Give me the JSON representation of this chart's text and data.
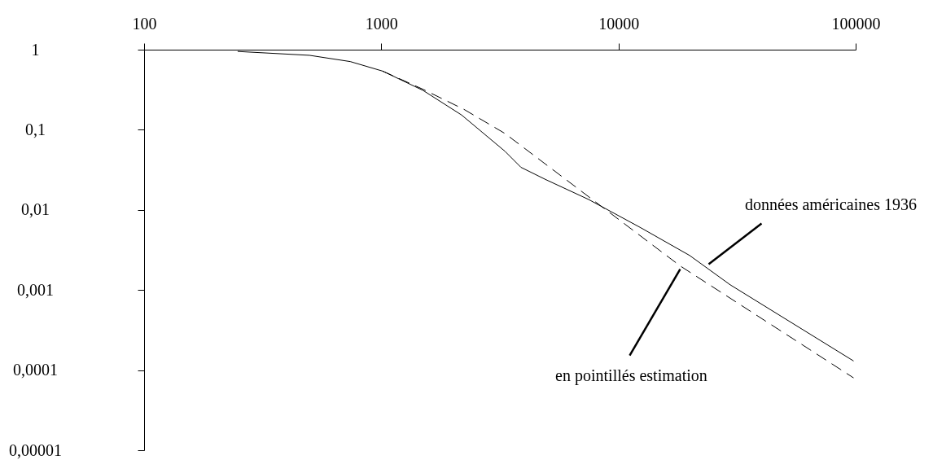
{
  "chart_data": {
    "type": "line",
    "xlim": [
      100,
      100000
    ],
    "xticks": [
      100,
      1000,
      10000,
      100000
    ],
    "ylim": [
      1e-05,
      1
    ],
    "yticks": [
      1,
      {
        "value": 0.1,
        "label": "0,1"
      },
      {
        "value": 0.01,
        "label": "0,01"
      },
      {
        "value": 0.001,
        "label": "0,001"
      },
      {
        "value": 0.0001,
        "label": "0,0001"
      },
      {
        "value": 1e-05,
        "label": "0,00001"
      }
    ],
    "log": "xy",
    "grid": false,
    "series": [
      {
        "color": "#000000",
        "line_style": "solid",
        "x": [
          248,
          498,
          740,
          1013,
          1500,
          2180,
          3320,
          3880,
          4920,
          7480,
          12400,
          19950,
          29600,
          98000
        ],
        "values": [
          0.95,
          0.85,
          0.71,
          0.54,
          0.31,
          0.153,
          0.054,
          0.034,
          0.024,
          0.0135,
          0.006,
          0.0027,
          0.00116,
          0.00013
        ]
      },
      {
        "color": "#000000",
        "line_style": "dashed",
        "x": [
          1013,
          1500,
          2230,
          3320,
          18200,
          98000
        ],
        "values": [
          0.54,
          0.32,
          0.18,
          0.09,
          0.002,
          8e-05
        ]
      }
    ],
    "annotations": [
      {
        "text": "données américaines 1936",
        "x": 24000,
        "y": 0.0021
      },
      {
        "text": "en pointillés estimation",
        "x": 18200,
        "y": 0.002
      }
    ]
  }
}
